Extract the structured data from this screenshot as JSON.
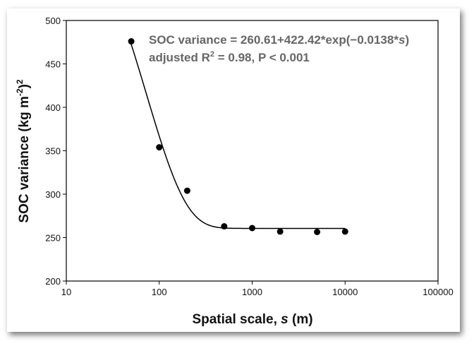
{
  "chart_data": {
    "type": "scatter",
    "xscale": "log",
    "xlim": [
      10,
      100000
    ],
    "ylim": [
      200,
      500
    ],
    "xticks": [
      "10",
      "100",
      "1000",
      "10000",
      "100000"
    ],
    "yticks": [
      "200",
      "250",
      "300",
      "350",
      "400",
      "450",
      "500"
    ],
    "xlabel": "Spatial scale, ",
    "xlabel_var": "s",
    "xlabel_unit": " (m)",
    "ylabel": "SOC variance (kg m",
    "ylabel_sup": "-2",
    "ylabel_end": ")",
    "ylabel_sup2": "2",
    "points": {
      "x": [
        50,
        100,
        200,
        500,
        1000,
        2000,
        5000,
        10000
      ],
      "y": [
        476,
        354,
        304,
        263,
        261,
        257,
        256.5,
        257
      ]
    },
    "fit": {
      "a": 260.61,
      "b": 422.42,
      "k": 0.0138,
      "x_range": [
        50,
        10000
      ]
    },
    "annotation": {
      "line1": "SOC variance = 260.61+422.42*exp(−0.0138*",
      "line1_var": "s",
      "line1_end": ")",
      "line2": "adjusted R",
      "line2_sup": "2",
      "line2_end": " = 0.98, P < 0.001"
    },
    "grid": false,
    "legend": "none"
  }
}
